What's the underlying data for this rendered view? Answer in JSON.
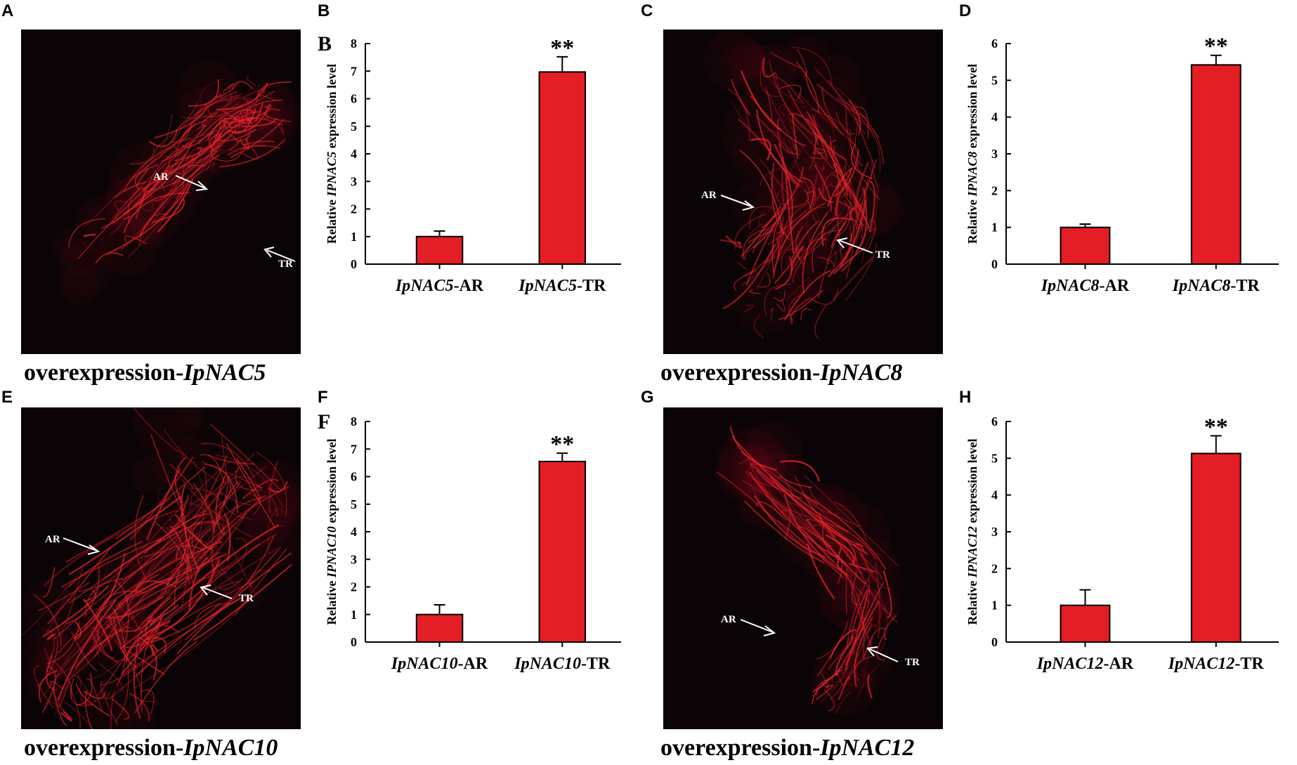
{
  "colors": {
    "bar": "#e31e24",
    "photo_bg": "#0b0406",
    "roots": "#e8232c"
  },
  "panels": [
    {
      "letter": "A",
      "type": "photo",
      "caption_prefix": "overexpression-",
      "caption_gene": "IpNAC5",
      "label_ar": "AR",
      "label_tr": "TR"
    },
    {
      "letter": "B",
      "type": "chart",
      "inner_letter": "B"
    },
    {
      "letter": "C",
      "type": "photo",
      "caption_prefix": "overexpression-",
      "caption_gene": "IpNAC8",
      "label_ar": "AR",
      "label_tr": "TR"
    },
    {
      "letter": "D",
      "type": "chart",
      "inner_letter": ""
    },
    {
      "letter": "E",
      "type": "photo",
      "caption_prefix": "overexpression-",
      "caption_gene": "IpNAC10",
      "label_ar": "AR",
      "label_tr": "TR"
    },
    {
      "letter": "F",
      "type": "chart",
      "inner_letter": "F"
    },
    {
      "letter": "G",
      "type": "photo",
      "caption_prefix": "overexpression-",
      "caption_gene": "IpNAC12",
      "label_ar": "AR",
      "label_tr": "TR"
    },
    {
      "letter": "H",
      "type": "chart",
      "inner_letter": ""
    }
  ],
  "chart_data": [
    {
      "panel": "B",
      "type": "bar",
      "ylabel_prefix": "Relative ",
      "ylabel_gene": "IPNAC5",
      "ylabel_suffix": " expression level",
      "categories": [
        {
          "gene": "IpNAC5",
          "suffix": "-AR"
        },
        {
          "gene": "IpNAC5",
          "suffix": "-TR"
        }
      ],
      "values": [
        1.0,
        6.97
      ],
      "errors": [
        0.2,
        0.55
      ],
      "significance": [
        "",
        "**"
      ],
      "ylim": [
        0,
        8
      ],
      "yticks": [
        0,
        1,
        2,
        3,
        4,
        5,
        6,
        7,
        8
      ]
    },
    {
      "panel": "D",
      "type": "bar",
      "ylabel_prefix": "Relative ",
      "ylabel_gene": "IPNAC8",
      "ylabel_suffix": " expression level",
      "categories": [
        {
          "gene": "IpNAC8",
          "suffix": "-AR"
        },
        {
          "gene": "IpNAC8",
          "suffix": "-TR"
        }
      ],
      "values": [
        1.0,
        5.42
      ],
      "errors": [
        0.09,
        0.26
      ],
      "significance": [
        "",
        "**"
      ],
      "ylim": [
        0,
        6
      ],
      "yticks": [
        0,
        1,
        2,
        3,
        4,
        5,
        6
      ]
    },
    {
      "panel": "F",
      "type": "bar",
      "ylabel_prefix": "Relative ",
      "ylabel_gene": "IPNAC10",
      "ylabel_suffix": " expression level",
      "categories": [
        {
          "gene": "IpNAC10",
          "suffix": "-AR"
        },
        {
          "gene": "IpNAC10",
          "suffix": "-TR"
        }
      ],
      "values": [
        1.0,
        6.55
      ],
      "errors": [
        0.35,
        0.3
      ],
      "significance": [
        "",
        "**"
      ],
      "ylim": [
        0,
        8
      ],
      "yticks": [
        0,
        1,
        2,
        3,
        4,
        5,
        6,
        7,
        8
      ]
    },
    {
      "panel": "H",
      "type": "bar",
      "ylabel_prefix": "Relative ",
      "ylabel_gene": "IPNAC12",
      "ylabel_suffix": " expression level",
      "categories": [
        {
          "gene": "IpNAC12",
          "suffix": "-AR"
        },
        {
          "gene": "IpNAC12",
          "suffix": "-TR"
        }
      ],
      "values": [
        1.0,
        5.13
      ],
      "errors": [
        0.42,
        0.48
      ],
      "significance": [
        "",
        "**"
      ],
      "ylim": [
        0,
        6
      ],
      "yticks": [
        0,
        1,
        2,
        3,
        4,
        5,
        6
      ]
    }
  ]
}
